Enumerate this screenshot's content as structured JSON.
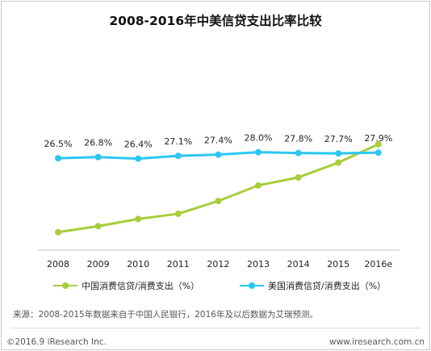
{
  "title": "2008-2016年中美信贷支出比率比较",
  "chart_data": {
    "type": "line",
    "categories": [
      "2008",
      "2009",
      "2010",
      "2011",
      "2012",
      "2013",
      "2014",
      "2015",
      "2016e"
    ],
    "series": [
      {
        "name": "中国消费信贷/消费支出（%）",
        "values": [
          8.0,
          9.5,
          11.3,
          12.6,
          15.8,
          19.7,
          21.7,
          25.4,
          30.0
        ],
        "color": "#a9cd3c",
        "data_labels": [
          "",
          "",
          "",
          "",
          "",
          "",
          "",
          "",
          ""
        ]
      },
      {
        "name": "美国消费信贷/消费支出（%）",
        "values": [
          26.5,
          26.8,
          26.4,
          27.1,
          27.4,
          28.0,
          27.8,
          27.7,
          27.9
        ],
        "color": "#2cc7f2",
        "data_labels": [
          "26.5%",
          "26.8%",
          "26.4%",
          "27.1%",
          "27.4%",
          "28.0%",
          "27.8%",
          "27.7%",
          "27.9%"
        ]
      }
    ],
    "ylim": [
      3.5,
      56
    ],
    "grid": false,
    "legend": "bottom"
  },
  "source": "来源：2008-2015年数据来自于中国人民银行，2016年及以后数据为艾瑞预测。",
  "footer": {
    "copyright": "©2016.9 iResearch Inc.",
    "website": "www.iresearch.com.cn"
  }
}
